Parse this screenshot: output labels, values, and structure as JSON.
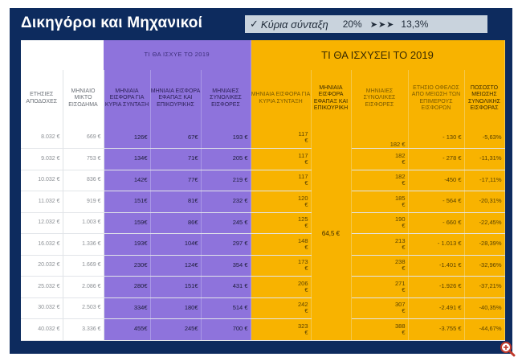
{
  "title": "Δικηγόροι και Μηχανικοί",
  "badge": {
    "label": "Κύρια σύνταξη",
    "from_pct": "20%",
    "arrows": "➤➤➤",
    "to_pct": "13,3%"
  },
  "headers": {
    "group_current": "ΤΙ ΘΑ ΙΣΧΥΕ ΤΟ 2019",
    "group_new": "ΤΙ ΘΑ ΙΣΧΥΣΕΙ ΤΟ 2019",
    "annual_income": "ΕΤΗΣΙΕΣ ΑΠΟΔΟΧΕΣ",
    "monthly_gross": "ΜΗΝΙΑΙΟ ΜΙΚΤΟ ΕΙΣΟΔΗΜΑ",
    "cur_main": "ΜΗΝΙΑΙΑ ΕΙΣΦΟΡΑ ΓΙΑ ΚΥΡΙΑ ΣΥΝΤΑΞΗ",
    "cur_lump": "ΜΗΝΙΑΙΑ ΕΙΣΦΟΡΑ ΕΦΑΠΑΞ ΚΑΙ ΕΠΙΚΟΥΡΙΚΗΣ",
    "cur_total": "ΜΗΝΙΑΙΕΣ ΣΥΝΟΛΙΚΕΣ ΕΙΣΦΟΡΕΣ",
    "new_main": "ΜΗΝΙΑΙΑ ΕΙΣΦΟΡΑ ΓΙΑ ΚΥΡΙΑ ΣΥΝΤΑΞΗ",
    "new_lump": "ΜΗΝΙΑΙΑ ΕΙΣΦΟΡΑ ΕΦΑΠΑΞ ΚΑΙ ΕΠΙΚΟΥΡΙΚΗ",
    "new_total": "ΜΗΝΙΑΙΕΣ ΣΥΝΟΛΙΚΕΣ ΕΙΣΦΟΡΕΣ",
    "benefit": "ΕΤΗΣΙΟ ΟΦΕΛΟΣ ΑΠΟ ΜΕΙΩΣΗ ΤΩΝ ΕΠΙΜΕΡΟΥΣ ΕΙΣΦΟΡΩΝ",
    "reduction": "ΠΟΣΟΣΤΟ ΜΕΙΩΣΗΣ ΣΥΝΟΛΙΚΗΣ ΕΙΣΦΟΡΑΣ"
  },
  "shared_new_lump": "64,5 €",
  "rows": [
    {
      "annual": "8.032 €",
      "monthly": "669 €",
      "cur_main": "126€",
      "cur_lump": "67€",
      "cur_total": "193 €",
      "new_main": "117",
      "new_total": "182 €",
      "benefit": "- 130 €",
      "pct": "-5,63%"
    },
    {
      "annual": "9.032 €",
      "monthly": "753 €",
      "cur_main": "134€",
      "cur_lump": "71€",
      "cur_total": "205 €",
      "new_main": "117",
      "new_total": "182",
      "benefit": "- 278 €",
      "pct": "-11,31%"
    },
    {
      "annual": "10.032 €",
      "monthly": "836 €",
      "cur_main": "142€",
      "cur_lump": "77€",
      "cur_total": "219 €",
      "new_main": "117",
      "new_total": "182",
      "benefit": "-450 €",
      "pct": "-17,11%"
    },
    {
      "annual": "11.032 €",
      "monthly": "919 €",
      "cur_main": "151€",
      "cur_lump": "81€",
      "cur_total": "232 €",
      "new_main": "120",
      "new_total": "185",
      "benefit": "- 564 €",
      "pct": "-20,31%"
    },
    {
      "annual": "12.032 €",
      "monthly": "1.003 €",
      "cur_main": "159€",
      "cur_lump": "86€",
      "cur_total": "245 €",
      "new_main": "125",
      "new_total": "190",
      "benefit": "- 660 €",
      "pct": "-22,45%"
    },
    {
      "annual": "16.032 €",
      "monthly": "1.336 €",
      "cur_main": "193€",
      "cur_lump": "104€",
      "cur_total": "297 €",
      "new_main": "148",
      "new_total": "213",
      "benefit": "- 1.013 €",
      "pct": "-28,39%"
    },
    {
      "annual": "20.032 €",
      "monthly": "1.669 €",
      "cur_main": "230€",
      "cur_lump": "124€",
      "cur_total": "354 €",
      "new_main": "173",
      "new_total": "238",
      "benefit": "-1.401 €",
      "pct": "-32,96%"
    },
    {
      "annual": "25.032 €",
      "monthly": "2.086 €",
      "cur_main": "280€",
      "cur_lump": "151€",
      "cur_total": "431 €",
      "new_main": "206",
      "new_total": "271",
      "benefit": "-1.926 €",
      "pct": "-37,21%"
    },
    {
      "annual": "30.032 €",
      "monthly": "2.503 €",
      "cur_main": "334€",
      "cur_lump": "180€",
      "cur_total": "514 €",
      "new_main": "242",
      "new_total": "307",
      "benefit": "-2.491 €",
      "pct": "-40,35%"
    },
    {
      "annual": "40.032 €",
      "monthly": "3.336 €",
      "cur_main": "455€",
      "cur_lump": "245€",
      "cur_total": "700 €",
      "new_main": "323",
      "new_total": "388",
      "benefit": "-3.755 €",
      "pct": "-44,67%"
    }
  ],
  "euro_suffix": "€",
  "zoom_icon": "zoom-in-icon"
}
